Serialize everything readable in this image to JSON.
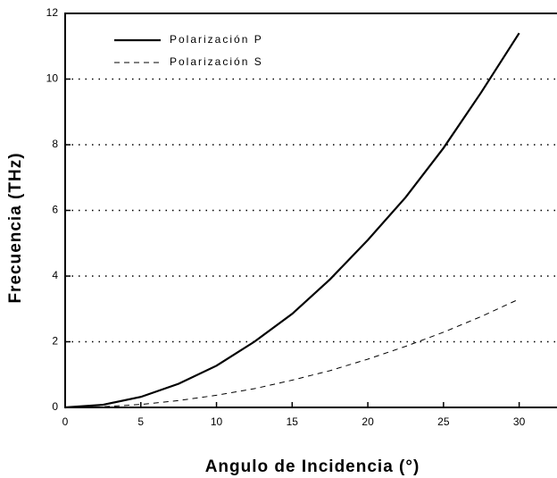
{
  "chart_data": {
    "type": "line",
    "x_label": "Angulo de Incidencia (°)",
    "y_label": "Frecuencia (THz)",
    "x": [
      0,
      2.5,
      5,
      7.5,
      10,
      12.5,
      15,
      17.5,
      20,
      22.5,
      25,
      27.5,
      30
    ],
    "series": [
      {
        "name": "Polarización P",
        "color": "#000000",
        "dash": "solid",
        "values": [
          0,
          0.08,
          0.32,
          0.72,
          1.27,
          2.0,
          2.85,
          3.9,
          5.1,
          6.4,
          7.9,
          9.6,
          11.4
        ]
      },
      {
        "name": "Polarización S",
        "color": "#000000",
        "dash": "dashed",
        "values": [
          0,
          0.02,
          0.09,
          0.21,
          0.37,
          0.57,
          0.83,
          1.12,
          1.47,
          1.86,
          2.29,
          2.77,
          3.3
        ]
      }
    ],
    "xlim": [
      0,
      32.5
    ],
    "ylim": [
      0,
      12
    ],
    "xticks": [
      0,
      5,
      10,
      15,
      20,
      25,
      30
    ],
    "yticks": [
      0,
      2,
      4,
      6,
      8,
      10,
      12
    ],
    "grid": true,
    "legend": "upper left"
  }
}
